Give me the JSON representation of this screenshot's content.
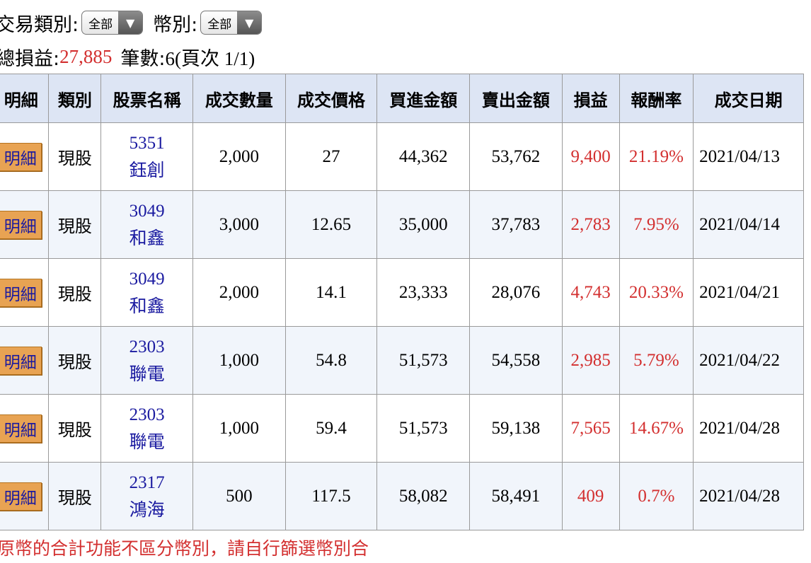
{
  "filters": {
    "type_label": "交易類別:",
    "type_value": "全部",
    "currency_label": "幣別:",
    "currency_value": "全部"
  },
  "summary": {
    "pnl_label": "總損益:",
    "pnl_value": "27,885",
    "count_label": "筆數:",
    "count_value": "6(頁次 1/1)"
  },
  "table": {
    "headers": [
      "明細",
      "類別",
      "股票名稱",
      "成交數量",
      "成交價格",
      "買進金額",
      "賣出金額",
      "損益",
      "報酬率",
      "成交日期"
    ],
    "rows": [
      {
        "detail": "明細",
        "category": "現股",
        "code": "5351",
        "name": "鈺創",
        "qty": "2,000",
        "price": "27",
        "buy": "44,362",
        "sell": "53,762",
        "pnl": "9,400",
        "ret": "21.19%",
        "date": "2021/04/13"
      },
      {
        "detail": "明細",
        "category": "現股",
        "code": "3049",
        "name": "和鑫",
        "qty": "3,000",
        "price": "12.65",
        "buy": "35,000",
        "sell": "37,783",
        "pnl": "2,783",
        "ret": "7.95%",
        "date": "2021/04/14"
      },
      {
        "detail": "明細",
        "category": "現股",
        "code": "3049",
        "name": "和鑫",
        "qty": "2,000",
        "price": "14.1",
        "buy": "23,333",
        "sell": "28,076",
        "pnl": "4,743",
        "ret": "20.33%",
        "date": "2021/04/21"
      },
      {
        "detail": "明細",
        "category": "現股",
        "code": "2303",
        "name": "聯電",
        "qty": "1,000",
        "price": "54.8",
        "buy": "51,573",
        "sell": "54,558",
        "pnl": "2,985",
        "ret": "5.79%",
        "date": "2021/04/22"
      },
      {
        "detail": "明細",
        "category": "現股",
        "code": "2303",
        "name": "聯電",
        "qty": "1,000",
        "price": "59.4",
        "buy": "51,573",
        "sell": "59,138",
        "pnl": "7,565",
        "ret": "14.67%",
        "date": "2021/04/28"
      },
      {
        "detail": "明細",
        "category": "現股",
        "code": "2317",
        "name": "鴻海",
        "qty": "500",
        "price": "117.5",
        "buy": "58,082",
        "sell": "58,491",
        "pnl": "409",
        "ret": "0.7%",
        "date": "2021/04/28"
      }
    ]
  },
  "footer_note": "原幣的合計功能不區分幣別，請自行篩選幣別合",
  "colors": {
    "profit": "#d32f2f",
    "link": "#1a1aa0",
    "header_bg": "#dde5f4",
    "detail_button": "#e8a353"
  }
}
